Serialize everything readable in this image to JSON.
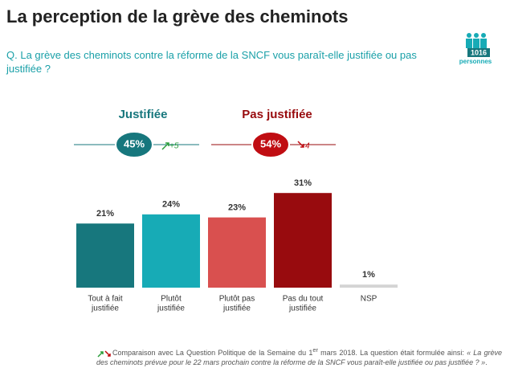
{
  "header": {
    "title": "La perception de la grève des cheminots",
    "question": "Q. La grève des cheminots contre la réforme de la SNCF vous paraît-elle justifiée ou pas justifiée ?",
    "sample_size": "1016",
    "sample_unit": "personnes"
  },
  "summary": [
    {
      "label": "Justifiée",
      "value": "45%",
      "change": "+5"
    },
    {
      "label": "Pas justifiée",
      "value": "54%",
      "change": "4"
    }
  ],
  "chart_data": {
    "type": "bar",
    "categories": [
      [
        "Tout à fait",
        "justifiée"
      ],
      [
        "Plutôt",
        "justifiée"
      ],
      [
        "Plutôt pas",
        "justifiée"
      ],
      [
        "Pas du tout",
        "justifiée"
      ],
      [
        "NSP"
      ]
    ],
    "values": [
      21,
      24,
      23,
      31,
      1
    ],
    "value_labels": [
      "21%",
      "24%",
      "23%",
      "31%",
      "1%"
    ],
    "colors": [
      "#17777d",
      "#17abb6",
      "#d9504f",
      "#980b0e",
      "#d4d4d4"
    ]
  },
  "footnote": {
    "parts": [
      "Comparaison avec La Question Politique de la Semaine du 1",
      "er",
      " mars 2018. La question était formulée ainsi: ",
      "« La grève des cheminots prévue pour le 22 mars prochain contre la réforme de la SNCF vous paraît-elle justifiée ou pas justifiée ? »",
      "."
    ]
  }
}
